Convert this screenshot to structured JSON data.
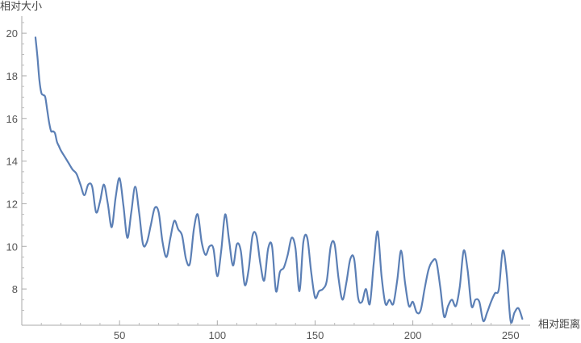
{
  "chart_data": {
    "type": "line",
    "xlabel": "相对距离",
    "ylabel": "相对大小",
    "xlim": [
      0,
      260
    ],
    "ylim": [
      6.3,
      20.8
    ],
    "x_ticks": [
      50,
      100,
      150,
      200,
      250
    ],
    "y_ticks": [
      8,
      10,
      12,
      14,
      16,
      18,
      20
    ],
    "grid": false,
    "legend": "none",
    "line_color": "#5b7fb5",
    "series": [
      {
        "x": [
          7,
          8,
          9,
          10,
          11,
          12,
          13,
          14,
          15,
          16,
          17,
          18,
          19,
          20,
          22,
          24,
          26,
          28,
          30,
          32,
          34,
          36,
          38,
          40,
          42,
          44,
          46,
          48,
          50,
          52,
          54,
          56,
          58,
          60,
          62,
          64,
          66,
          68,
          70,
          72,
          74,
          76,
          78,
          80,
          82,
          84,
          86,
          88,
          90,
          92,
          94,
          96,
          98,
          100,
          102,
          104,
          106,
          108,
          110,
          112,
          114,
          116,
          118,
          120,
          122,
          124,
          126,
          128,
          130,
          132,
          134,
          136,
          138,
          140,
          142,
          144,
          146,
          148,
          150,
          152,
          154,
          156,
          158,
          160,
          162,
          164,
          166,
          168,
          170,
          172,
          174,
          176,
          178,
          180,
          182,
          184,
          186,
          188,
          190,
          192,
          194,
          196,
          198,
          200,
          202,
          204,
          206,
          208,
          210,
          212,
          214,
          216,
          218,
          220,
          222,
          224,
          226,
          228,
          230,
          232,
          234,
          236,
          238,
          240,
          242,
          244,
          246,
          248,
          250,
          252,
          254,
          256
        ],
        "y": [
          19.8,
          18.9,
          17.8,
          17.2,
          17.1,
          17.0,
          16.4,
          15.8,
          15.4,
          15.4,
          15.3,
          14.9,
          14.7,
          14.5,
          14.2,
          13.9,
          13.6,
          13.4,
          12.9,
          12.4,
          12.9,
          12.8,
          11.6,
          12.1,
          12.9,
          12.0,
          10.9,
          12.3,
          13.2,
          11.9,
          10.4,
          11.6,
          12.8,
          11.6,
          10.1,
          10.2,
          11.0,
          11.8,
          11.6,
          10.2,
          9.5,
          10.4,
          11.2,
          10.8,
          10.5,
          9.4,
          9.2,
          10.8,
          11.5,
          10.2,
          9.6,
          10.0,
          9.9,
          8.6,
          9.8,
          11.5,
          10.3,
          9.1,
          10.1,
          9.8,
          8.2,
          8.9,
          10.5,
          10.5,
          9.2,
          8.4,
          9.9,
          10.0,
          7.9,
          8.8,
          9.0,
          9.6,
          10.4,
          9.9,
          7.9,
          10.2,
          10.4,
          8.8,
          7.6,
          7.9,
          8.0,
          8.4,
          10.0,
          10.1,
          8.5,
          7.5,
          8.3,
          9.4,
          9.4,
          7.6,
          7.4,
          8.0,
          7.3,
          9.2,
          10.7,
          8.6,
          7.3,
          7.5,
          7.3,
          8.4,
          9.8,
          8.3,
          7.2,
          7.4,
          6.9,
          7.0,
          8.0,
          8.9,
          9.3,
          9.3,
          8.1,
          6.7,
          7.2,
          7.5,
          7.2,
          8.1,
          9.8,
          8.9,
          7.2,
          7.5,
          7.4,
          6.5,
          6.9,
          7.4,
          7.8,
          8.0,
          9.8,
          8.7,
          6.5,
          6.9,
          7.1,
          6.6
        ]
      }
    ]
  }
}
